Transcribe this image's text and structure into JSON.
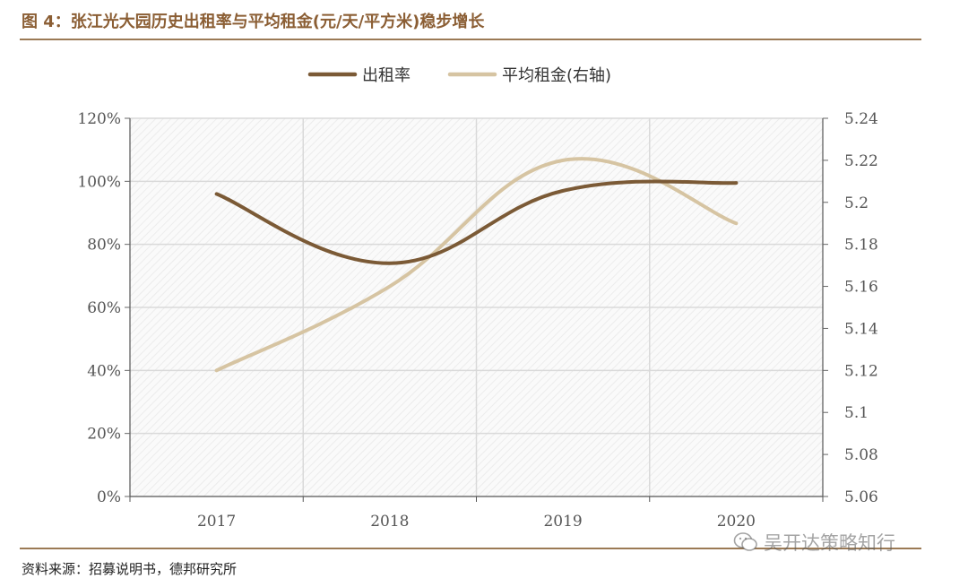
{
  "figure": {
    "title": "图 4：张江光大园历史出租率与平均租金(元/天/平方米)稳步增长",
    "source": "资料来源：招募说明书，德邦研究所",
    "watermark": "吴开达策略知行",
    "watermark_icon": "wechat-icon"
  },
  "colors": {
    "title": "#8b5e34",
    "rule": "#9b7a55",
    "occupancy": "#7b5a36",
    "rent": "#d6c4a2",
    "grid": "#d9d9d9"
  },
  "chart_data": {
    "type": "line",
    "title": "",
    "categories": [
      "2017",
      "2018",
      "2019",
      "2020"
    ],
    "series": [
      {
        "name": "出租率",
        "axis": "left",
        "values": [
          96,
          74,
          97,
          99.5
        ]
      },
      {
        "name": "平均租金(右轴)",
        "axis": "right",
        "values": [
          5.12,
          5.16,
          5.22,
          5.19
        ]
      }
    ],
    "y_left": {
      "min": 0,
      "max": 120,
      "ticks": [
        "0%",
        "20%",
        "40%",
        "60%",
        "80%",
        "100%",
        "120%"
      ]
    },
    "y_right": {
      "min": 5.06,
      "max": 5.24,
      "ticks": [
        "5.06",
        "5.08",
        "5.1",
        "5.12",
        "5.14",
        "5.16",
        "5.18",
        "5.2",
        "5.22",
        "5.24"
      ]
    },
    "legend": [
      "出租率",
      "平均租金(右轴)"
    ],
    "legend_position": "top-center",
    "grid": true
  }
}
